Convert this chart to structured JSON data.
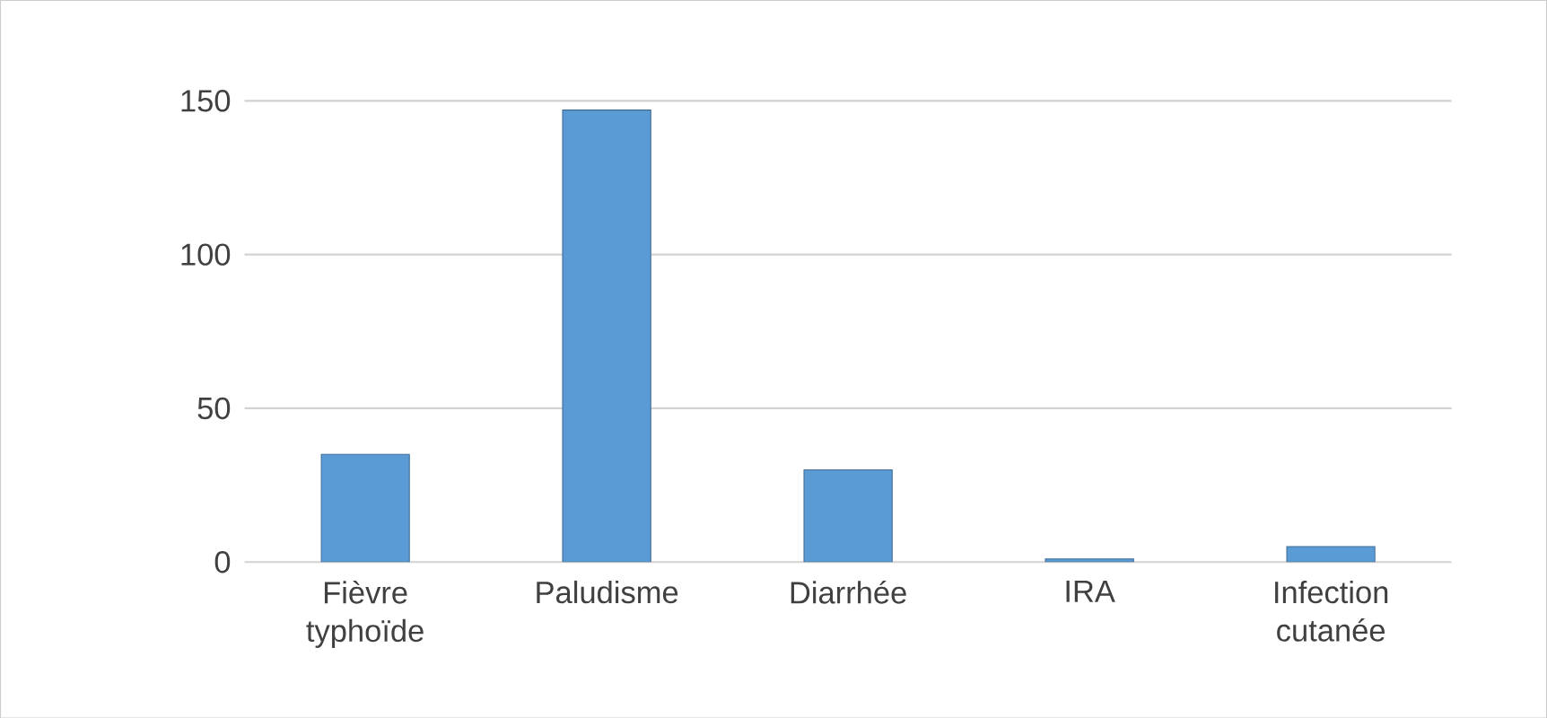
{
  "chart_data": {
    "type": "bar",
    "categories": [
      "Fièvre typhoïde",
      "Paludisme",
      "Diarrhée",
      "IRA",
      "Infection cutanée"
    ],
    "values": [
      35,
      147,
      30,
      1,
      5
    ],
    "color": "#5b9bd5",
    "ylim": [
      0,
      150
    ],
    "yticks": [
      0,
      50,
      100,
      150
    ],
    "grid": "y"
  }
}
